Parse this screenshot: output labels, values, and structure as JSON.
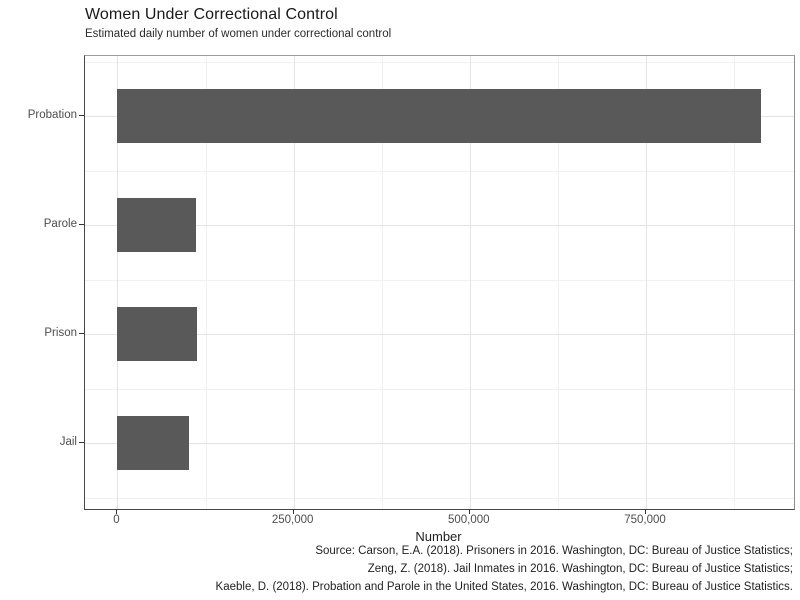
{
  "header": {
    "title": "Women Under Correctional Control",
    "subtitle": "Estimated daily number of women under correctional control"
  },
  "chart_data": {
    "type": "bar",
    "orientation": "horizontal",
    "title": "Women Under Correctional Control",
    "subtitle": "Estimated daily number of women under correctional control",
    "categories": [
      "Probation",
      "Parole",
      "Prison",
      "Jail"
    ],
    "values": [
      913000,
      112000,
      113000,
      102000
    ],
    "xlabel": "Number",
    "ylabel": "",
    "xlim": [
      -46000,
      960000
    ],
    "x_major_ticks": [
      0,
      250000,
      500000,
      750000
    ],
    "x_major_tick_labels": [
      "0",
      "250,000",
      "500,000",
      "750,000"
    ],
    "x_minor_ticks": [
      125000,
      375000,
      625000,
      875000
    ],
    "grid": "major and minor, light gray on white panel",
    "legend_position": "none",
    "bar_color": "#595959"
  },
  "caption": {
    "line1": "Source: Carson, E.A. (2018). Prisoners in 2016. Washington, DC: Bureau of Justice Statistics;",
    "line2": "Zeng, Z. (2018). Jail Inmates in 2016. Washington, DC: Bureau of Justice Statistics;",
    "line3": "Kaeble, D. (2018). Probation and Parole in the United States, 2016. Washington, DC: Bureau of Justice Statistics."
  },
  "colors": {
    "bar": "#595959",
    "grid_major": "#e4e4e4",
    "grid_minor": "#f1f1f1",
    "axis_text": "#4d4d4d",
    "axis_line_dark": "#474747",
    "panel_border_light": "#9e9e9e",
    "background": "#ffffff"
  }
}
